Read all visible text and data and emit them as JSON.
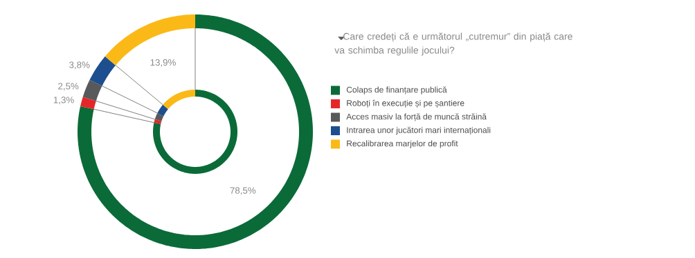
{
  "chart_data": {
    "type": "donut",
    "title": "Care credeți că e următorul „cutremur” din piață care va schimba regulile jocului?",
    "categories": [
      "Colaps de finanțare publică",
      "Roboți în execuție și pe șantiere",
      "Acces masiv la forță de muncă străină",
      "Intrarea unor jucători mari internaționali",
      "Recalibrarea marjelor de profit"
    ],
    "series": [
      {
        "values": [
          78.5,
          1.3,
          2.5,
          3.8,
          13.9
        ]
      },
      {
        "values": [
          78.5,
          1.3,
          2.5,
          3.8,
          13.9
        ]
      }
    ],
    "colors": [
      "#0b6b38",
      "#e52629",
      "#58595b",
      "#1d4e8f",
      "#fbb917"
    ],
    "value_labels": [
      "78,5%",
      "1,3%",
      "2,5%",
      "3,8%",
      "13,9%"
    ],
    "legend": "right"
  }
}
